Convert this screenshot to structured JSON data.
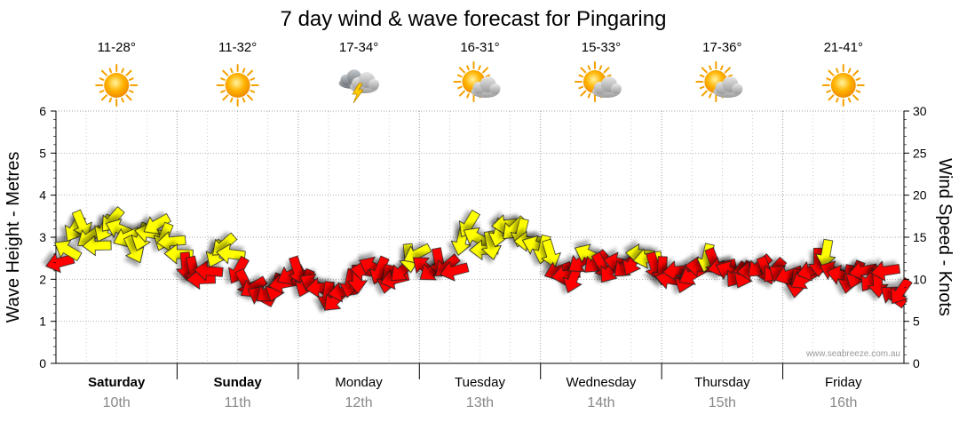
{
  "chart_data": {
    "type": "scatter",
    "title": "7 day wind & wave forecast for Pingaring",
    "ylabel_left": "Wave Height - Metres",
    "ylabel_right": "Wind Speed - Knots",
    "ylim_left": [
      0,
      6
    ],
    "ylim_right": [
      0,
      30
    ],
    "left_ticks": [
      "0",
      "1",
      "2",
      "3",
      "4",
      "5",
      "6"
    ],
    "right_ticks": [
      "0",
      "5",
      "10",
      "15",
      "20",
      "25",
      "30"
    ],
    "days": [
      {
        "name": "Saturday",
        "date": "10th",
        "bold": true,
        "temp": "11-28°",
        "weather": "sunny-icon"
      },
      {
        "name": "Sunday",
        "date": "11th",
        "bold": true,
        "temp": "11-32°",
        "weather": "sunny-icon"
      },
      {
        "name": "Monday",
        "date": "12th",
        "bold": false,
        "temp": "17-34°",
        "weather": "thunderstorm-icon"
      },
      {
        "name": "Tuesday",
        "date": "13th",
        "bold": false,
        "temp": "16-31°",
        "weather": "partly-cloudy-icon"
      },
      {
        "name": "Wednesday",
        "date": "14th",
        "bold": false,
        "temp": "15-33°",
        "weather": "partly-cloudy-icon"
      },
      {
        "name": "Thursday",
        "date": "15th",
        "bold": false,
        "temp": "17-36°",
        "weather": "partly-cloudy-icon"
      },
      {
        "name": "Friday",
        "date": "16th",
        "bold": false,
        "temp": "21-41°",
        "weather": "sunny-icon"
      }
    ],
    "wind_series": {
      "name": "Wind",
      "values_knots": [
        12.0,
        13.5,
        16.0,
        16.5,
        15.0,
        14.0,
        16.0,
        17.0,
        16.0,
        15.0,
        13.5,
        15.0,
        15.5,
        16.5,
        15.0,
        14.5,
        13.0,
        11.5,
        11.0,
        10.0,
        11.0,
        13.0,
        14.0,
        13.0,
        11.0,
        9.5,
        9.0,
        8.0,
        8.5,
        9.0,
        9.5,
        10.5,
        11.0,
        9.5,
        9.5,
        9.0,
        8.0,
        7.5,
        8.5,
        9.5,
        10.0,
        11.0,
        11.5,
        11.0,
        10.0,
        10.0,
        11.0,
        12.5,
        13.0,
        11.5,
        11.0,
        12.0,
        11.5,
        11.0,
        14.5,
        16.5,
        15.0,
        13.5,
        14.0,
        15.5,
        16.5,
        16.0,
        15.5,
        14.5,
        14.0,
        13.5,
        13.0,
        11.0,
        10.5,
        10.0,
        12.0,
        13.0,
        12.0,
        11.5,
        11.0,
        12.0,
        11.5,
        12.0,
        13.0,
        12.5,
        11.5,
        11.0,
        10.0,
        11.0,
        10.0,
        10.5,
        11.5,
        12.5,
        12.0,
        11.5,
        11.0,
        10.5,
        10.5,
        11.0,
        11.5,
        11.0,
        11.0,
        10.5,
        10.5,
        9.5,
        10.0,
        11.0,
        12.0,
        13.0,
        11.0,
        10.5,
        10.0,
        10.5,
        11.0,
        10.0,
        9.5,
        11.0,
        8.0,
        8.5
      ],
      "colors": {
        "light": "#ffff00",
        "strong": "#ff0000"
      },
      "threshold_knots": 12.5
    },
    "grid": true
  },
  "credit": "www.seabreeze.com.au"
}
